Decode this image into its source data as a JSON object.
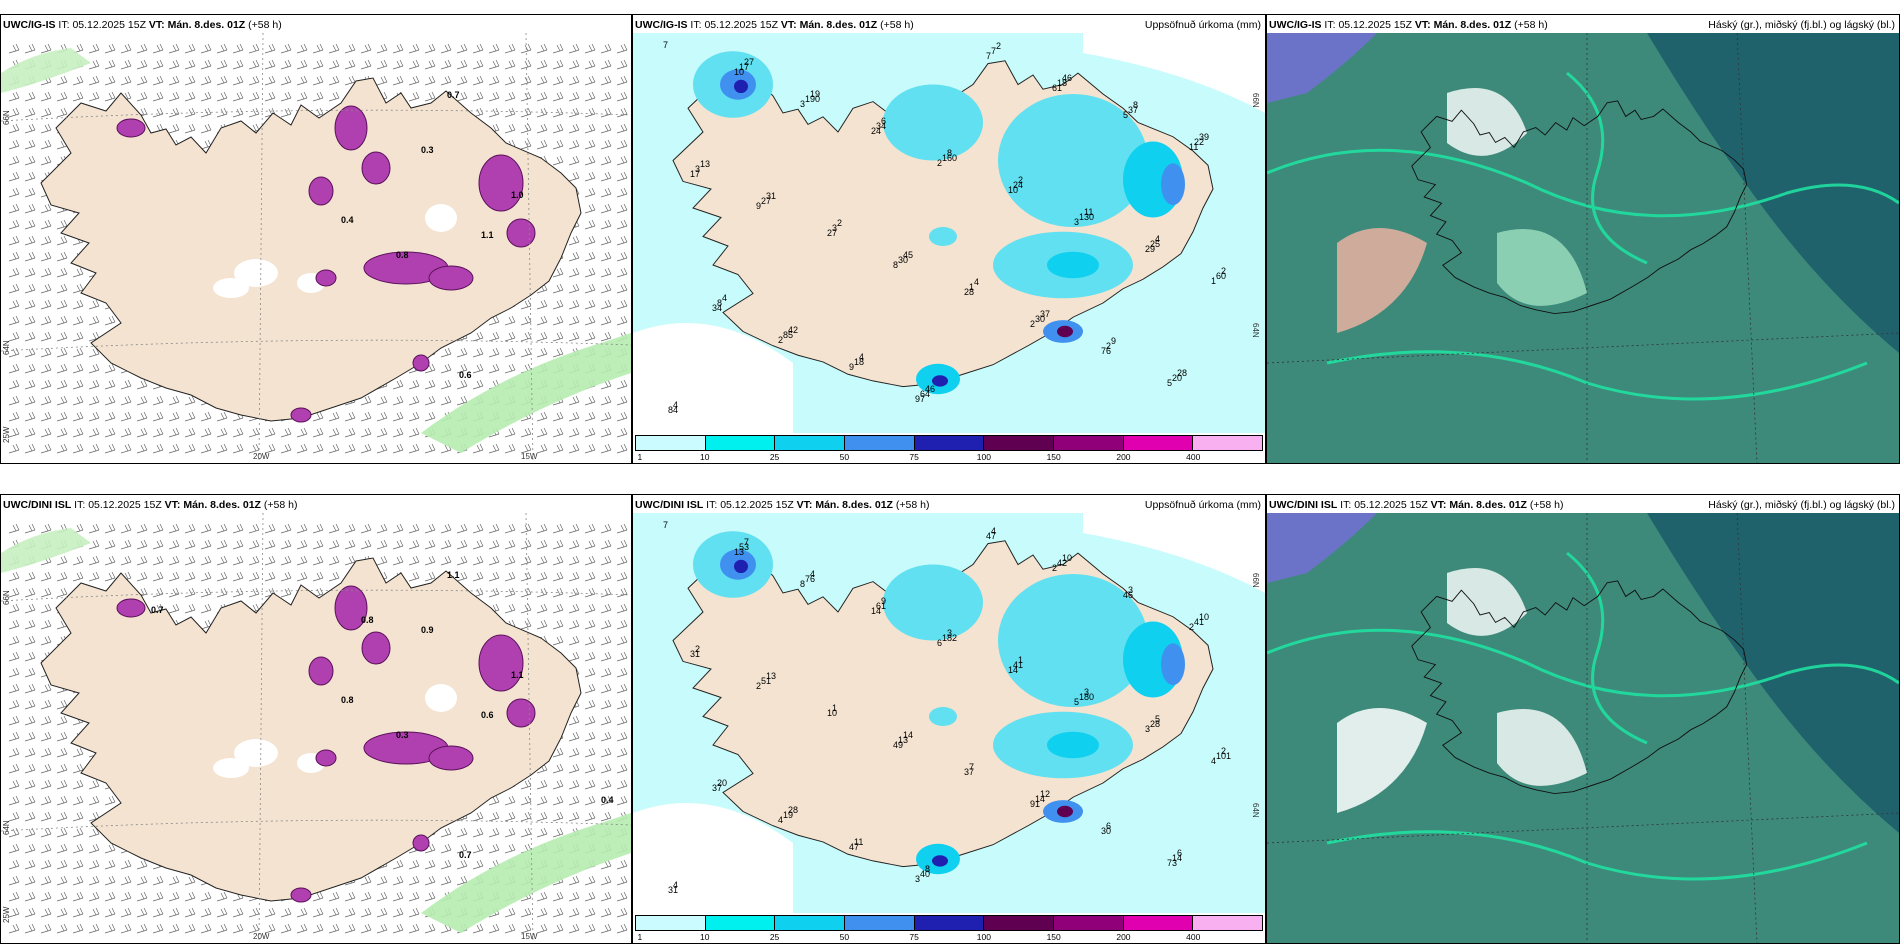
{
  "panels": {
    "p1": {
      "model": "UWC/IG-IS",
      "it_label": "IT:",
      "it_value": "05.12.2025 15Z",
      "vt_label": "VT:",
      "vt_value": "Mán. 8.des. 01Z",
      "lead": "(+58 h)",
      "right_title": "",
      "lat_labels": [
        "66N",
        "64N"
      ],
      "lon_labels": [
        "25W",
        "20W",
        "15W"
      ],
      "values": [
        "0.7",
        "0.6",
        "0.4",
        "0.8",
        "1.0",
        "1.1",
        "0.3"
      ]
    },
    "p2": {
      "model": "UWC/IG-IS",
      "it_label": "IT:",
      "it_value": "05.12.2025 15Z",
      "vt_label": "VT:",
      "vt_value": "Mán. 8.des. 01Z",
      "lead": "(+58 h)",
      "right_title": "Uppsöfnuð úrkoma (mm)",
      "lat_labels": [
        "66N",
        "64N"
      ],
      "values": [
        "7",
        "3",
        "2",
        "3",
        "1",
        "2",
        "97",
        "61",
        "11",
        "9",
        "8",
        "2",
        "5",
        "10",
        "24",
        "10",
        "29",
        "34",
        "9",
        "7",
        "5",
        "17",
        "27",
        "28",
        "76",
        "84",
        "190",
        "160",
        "130",
        "60",
        "85",
        "64",
        "18",
        "22",
        "27",
        "30",
        "30",
        "20",
        "17",
        "34",
        "24",
        "25",
        "8",
        "18",
        "7",
        "37",
        "3",
        "3",
        "1",
        "2",
        "4",
        "19",
        "8",
        "11",
        "2",
        "42",
        "46",
        "46",
        "39",
        "31",
        "45",
        "37",
        "28",
        "27",
        "6",
        "2",
        "4",
        "4",
        "4",
        "2",
        "8",
        "13",
        "2",
        "4",
        "9"
      ]
    },
    "p3": {
      "model": "UWC/IG-IS",
      "it_label": "IT:",
      "it_value": "05.12.2025 15Z",
      "vt_label": "VT:",
      "vt_value": "Mán. 8.des. 01Z",
      "lead": "(+58 h)",
      "right_title": "Háský (gr.), miðský (fj.bl.) og lágský (bl.)"
    },
    "p4": {
      "model": "UWC/DINI ISL",
      "it_label": "IT:",
      "it_value": "05.12.2025 15Z",
      "vt_label": "VT:",
      "vt_value": "Mán. 8.des. 01Z",
      "lead": "(+58 h)",
      "right_title": "",
      "lat_labels": [
        "66N",
        "64N"
      ],
      "lon_labels": [
        "25W",
        "20W",
        "15W"
      ],
      "values": [
        "1.1",
        "0.7",
        "0.8",
        "0.3",
        "1.1",
        "0.6",
        "0.9",
        "0.7",
        "0.8",
        "0.4"
      ]
    },
    "p5": {
      "model": "UWC/DINI ISL",
      "it_label": "IT:",
      "it_value": "05.12.2025 15Z",
      "vt_label": "VT:",
      "vt_value": "Mán. 8.des. 01Z",
      "lead": "(+58 h)",
      "right_title": "Uppsöfnuð úrkoma (mm)",
      "lat_labels": [
        "66N",
        "64N"
      ],
      "values": [
        "7",
        "8",
        "6",
        "5",
        "4",
        "4",
        "3",
        "2",
        "2",
        "2",
        "49",
        "91",
        "73",
        "13",
        "14",
        "14",
        "3",
        "37",
        "47",
        "47",
        "46",
        "31",
        "10",
        "37",
        "30",
        "31",
        "76",
        "182",
        "180",
        "101",
        "19",
        "40",
        "42",
        "41",
        "51",
        "13",
        "14",
        "14",
        "53",
        "61",
        "41",
        "28",
        "20",
        "11",
        "4",
        "3",
        "2",
        "1",
        "7",
        "6",
        "4",
        "4",
        "3",
        "3",
        "2",
        "28",
        "8",
        "10",
        "10",
        "13",
        "14",
        "12",
        "6",
        "7",
        "9",
        "1",
        "5"
      ]
    },
    "p6": {
      "model": "UWC/DINI ISL",
      "it_label": "IT:",
      "it_value": "05.12.2025 15Z",
      "vt_label": "VT:",
      "vt_value": "Mán. 8.des. 01Z",
      "lead": "(+58 h)",
      "right_title": "Háský (gr.), miðský (fj.bl.) og lágský (bl.)"
    }
  },
  "colorbar": {
    "colors": [
      "#ccfbff",
      "#00f0f0",
      "#10d0f0",
      "#4090f0",
      "#2020b0",
      "#600050",
      "#900078",
      "#e000b0",
      "#f8b0f0"
    ],
    "ticks": [
      "1",
      "10",
      "25",
      "50",
      "75",
      "100",
      "150",
      "200",
      "400"
    ]
  },
  "colors": {
    "land": "#f3e3d0",
    "precip_light": "#c8fbfb",
    "precip_mid": "#60e0f0",
    "cloud_base": "#3d8a7a",
    "cloud_high": "#20e0a0",
    "cloud_mid": "#7070d0",
    "cloud_low": "#1a5a6a",
    "snow": "#b040b0"
  }
}
